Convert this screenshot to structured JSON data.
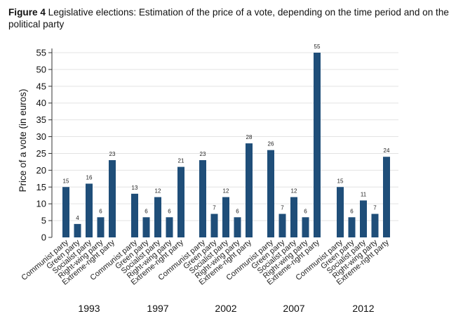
{
  "figure": {
    "label": "Figure 4",
    "caption": "Legislative elections: Estimation of the price of a vote, depending on the time period and on the political party"
  },
  "chart_data": {
    "type": "bar",
    "ylabel": "Price of a vote (in euros)",
    "xlabel": "",
    "ylim": [
      0,
      55
    ],
    "yticks": [
      0,
      5,
      10,
      15,
      20,
      25,
      30,
      35,
      40,
      45,
      50,
      55
    ],
    "grid": true,
    "bar_color": "#1f4e79",
    "categories": [
      "Communist party",
      "Green party",
      "Socialist party",
      "Right-wing party",
      "Extreme-right party"
    ],
    "groups": [
      {
        "label": "1993",
        "values": [
          15,
          4,
          16,
          6,
          23
        ]
      },
      {
        "label": "1997",
        "values": [
          13,
          6,
          12,
          6,
          21
        ]
      },
      {
        "label": "2002",
        "values": [
          23,
          7,
          12,
          6,
          28
        ]
      },
      {
        "label": "2007",
        "values": [
          26,
          7,
          12,
          6,
          55
        ]
      },
      {
        "label": "2012",
        "values": [
          15,
          6,
          11,
          7,
          24
        ]
      }
    ],
    "bar_value_labels": [
      [
        "15",
        "4",
        "16",
        "6",
        "23"
      ],
      [
        "13",
        "6",
        "12",
        "6",
        "21"
      ],
      [
        "23",
        "7",
        "12",
        "6",
        "28"
      ],
      [
        "26",
        "7",
        "12",
        "6",
        "55"
      ],
      [
        "15",
        "6",
        "11",
        "7",
        "24"
      ]
    ]
  }
}
